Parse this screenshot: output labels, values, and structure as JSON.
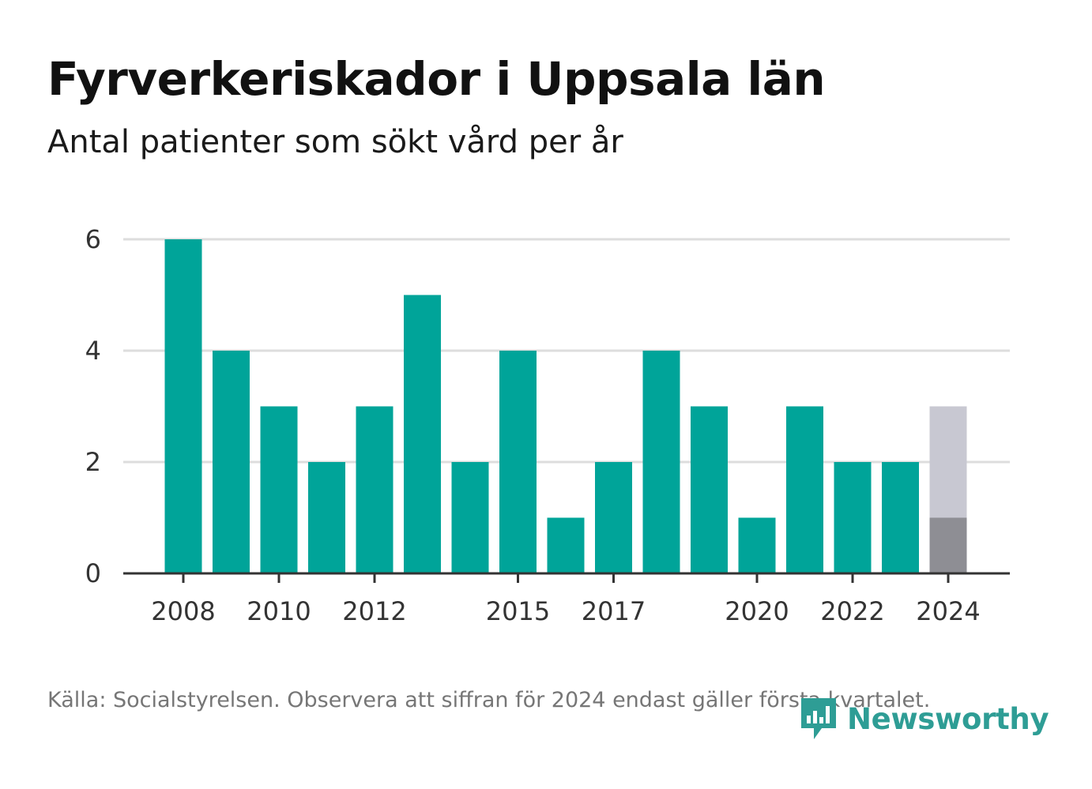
{
  "header": {
    "title": "Fyrverkeriskador i Uppsala län",
    "subtitle": "Antal patienter som sökt vård per år"
  },
  "footer": {
    "source": "Källa: Socialstyrelsen. Observera att siffran för 2024 endast gäller första kvartalet.",
    "logo_text": "Newsworthy"
  },
  "colors": {
    "bar": "#00a499",
    "bar_2024_full": "#c8c8d2",
    "bar_2024_q1": "#8e8e94",
    "grid": "#dddddd",
    "axis": "#333333",
    "logo": "#2e9d95"
  },
  "chart_data": {
    "type": "bar",
    "title": "Fyrverkeriskador i Uppsala län",
    "subtitle": "Antal patienter som sökt vård per år",
    "x": [
      2008,
      2009,
      2010,
      2011,
      2012,
      2013,
      2014,
      2015,
      2016,
      2017,
      2018,
      2019,
      2020,
      2021,
      2022,
      2023,
      2024
    ],
    "values": [
      6,
      4,
      3,
      2,
      3,
      5,
      2,
      4,
      1,
      2,
      4,
      3,
      1,
      3,
      2,
      2,
      3
    ],
    "highlight_2024_value": 1,
    "x_tick_labels": [
      "2008",
      "2010",
      "2012",
      "2015",
      "2017",
      "2020",
      "2022",
      "2024"
    ],
    "y_ticks": [
      0,
      2,
      4,
      6
    ],
    "ylim": [
      0,
      6
    ],
    "xlabel": "",
    "ylabel": "",
    "grid": true,
    "legend": "none"
  }
}
